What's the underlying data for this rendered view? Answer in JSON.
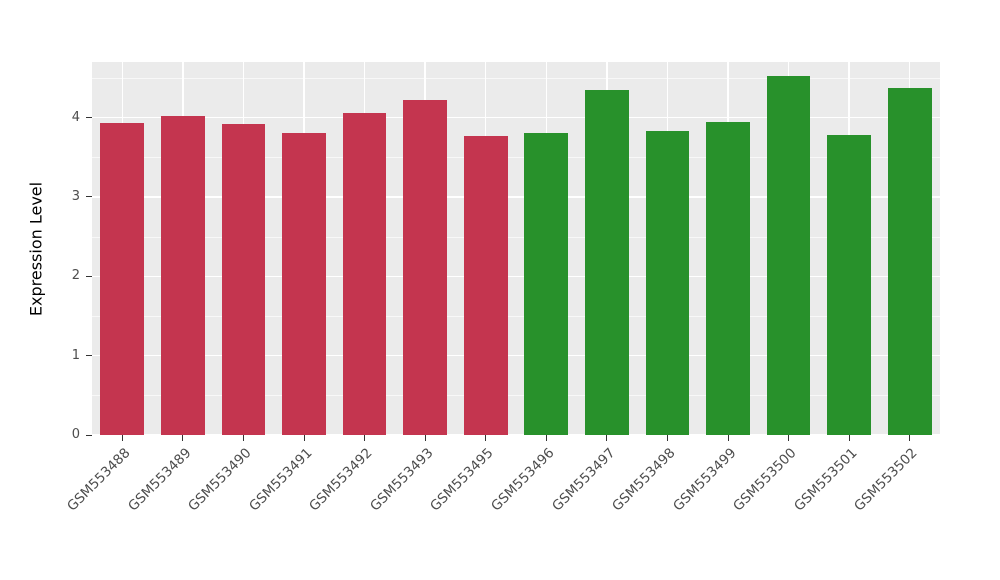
{
  "chart_data": {
    "type": "bar",
    "title": "",
    "xlabel": "",
    "ylabel": "Expression Level",
    "categories": [
      "GSM553488",
      "GSM553489",
      "GSM553490",
      "GSM553491",
      "GSM553492",
      "GSM553493",
      "GSM553495",
      "GSM553496",
      "GSM553497",
      "GSM553498",
      "GSM553499",
      "GSM553500",
      "GSM553501",
      "GSM553502"
    ],
    "values": [
      3.93,
      4.02,
      3.92,
      3.81,
      4.06,
      4.22,
      3.77,
      3.81,
      4.35,
      3.83,
      3.95,
      4.52,
      3.78,
      4.37
    ],
    "bar_colors": [
      "#C4354F",
      "#C4354F",
      "#C4354F",
      "#C4354F",
      "#C4354F",
      "#C4354F",
      "#C4354F",
      "#28912B",
      "#28912B",
      "#28912B",
      "#28912B",
      "#28912B",
      "#28912B",
      "#28912B"
    ],
    "group_colors": {
      "red": "#C4354F",
      "green": "#28912B"
    },
    "yticks": [
      0,
      1,
      2,
      3,
      4
    ],
    "ylim": [
      0,
      4.7
    ],
    "legend": "none",
    "grid": "on",
    "panel_background": "#EBEBEB"
  }
}
